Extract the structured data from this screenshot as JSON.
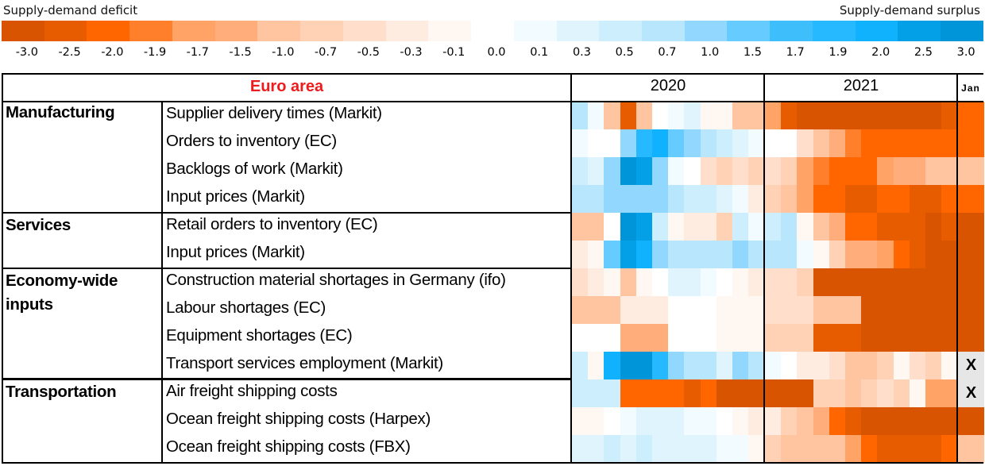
{
  "chart_data": {
    "type": "heatmap",
    "title": "Euro area",
    "legend": {
      "left_label": "Supply-demand deficit",
      "right_label": "Supply-demand surplus",
      "ticks": [
        "-3.0",
        "-2.5",
        "-2.0",
        "-1.9",
        "-1.7",
        "-1.5",
        "-1.0",
        "-0.7",
        "-0.5",
        "-0.3",
        "-0.1",
        "0.0",
        "0.1",
        "0.3",
        "0.5",
        "0.7",
        "1.0",
        "1.5",
        "1.7",
        "1.9",
        "2.0",
        "2.5",
        "3.0"
      ],
      "colors": [
        "#d95400",
        "#e85c00",
        "#ff6600",
        "#ff7f2a",
        "#ffa366",
        "#ffad7a",
        "#ffc4a0",
        "#ffd1b5",
        "#ffdfcc",
        "#ffece0",
        "#fff8f2",
        "#ffffff",
        "#f2fbff",
        "#e0f4fd",
        "#cdeefc",
        "#b8e6fc",
        "#92d7fd",
        "#66ccff",
        "#3ebffc",
        "#26b9ff",
        "#10b2fe",
        "#03a0e8",
        "#0094d8"
      ]
    },
    "column_groups": [
      {
        "label": "2020",
        "months": 12
      },
      {
        "label": "2021",
        "months": 12
      },
      {
        "label": "Jan",
        "months": 1
      }
    ],
    "missing_marker": "X",
    "categories": [
      {
        "name": "Manufacturing",
        "rows": [
          0,
          1,
          2,
          3
        ]
      },
      {
        "name": "Services",
        "rows": [
          4,
          5
        ]
      },
      {
        "name": "Economy-wide inputs",
        "rows": [
          6,
          7,
          8,
          9
        ]
      },
      {
        "name": "Transportation",
        "rows": [
          10,
          11,
          12
        ]
      }
    ],
    "rows": [
      {
        "label": "Supplier delivery times (Markit)",
        "values": [
          0.7,
          0.1,
          -1.0,
          -2.5,
          -1.0,
          0.0,
          0.1,
          0.3,
          -0.1,
          -0.1,
          -1.0,
          -1.0,
          -1.7,
          -2.5,
          -3.0,
          -3.0,
          -3.0,
          -3.0,
          -3.0,
          -3.0,
          -3.0,
          -3.0,
          -3.0,
          -2.5,
          -2.0
        ]
      },
      {
        "label": "Orders to inventory (EC)",
        "values": [
          0.1,
          0.0,
          0.0,
          1.0,
          1.9,
          2.0,
          1.5,
          1.0,
          0.7,
          0.5,
          0.3,
          0.1,
          0.0,
          0.0,
          -0.5,
          -1.0,
          -1.5,
          -1.9,
          -2.0,
          -2.0,
          -2.0,
          -2.0,
          -2.0,
          -2.0,
          -2.0
        ]
      },
      {
        "label": "Backlogs of work (Markit)",
        "values": [
          0.5,
          0.3,
          1.0,
          3.0,
          2.5,
          1.0,
          0.1,
          0.0,
          -0.5,
          -0.7,
          -0.5,
          -0.7,
          -0.5,
          -0.7,
          -1.7,
          -1.9,
          -2.0,
          -2.0,
          -2.0,
          -1.7,
          -1.5,
          -1.5,
          -1.0,
          -1.0,
          -1.0
        ]
      },
      {
        "label": "Input prices (Markit)",
        "values": [
          0.7,
          0.7,
          1.0,
          1.0,
          1.0,
          1.0,
          0.7,
          0.5,
          0.5,
          0.3,
          0.1,
          -0.3,
          -0.7,
          -1.0,
          -1.7,
          -2.0,
          -2.0,
          -2.5,
          -2.5,
          -2.0,
          -2.0,
          -2.5,
          -2.5,
          -2.0,
          -2.0
        ]
      },
      {
        "label": "Retail orders to inventory (EC)",
        "values": [
          -1.0,
          -1.0,
          0.0,
          3.0,
          2.5,
          0.5,
          -0.1,
          -0.3,
          -0.3,
          -0.7,
          0.5,
          0.1,
          0.5,
          0.7,
          -0.1,
          -1.0,
          -1.5,
          -2.0,
          -2.0,
          -2.5,
          -2.5,
          -2.5,
          -3.0,
          -2.5,
          -3.0
        ]
      },
      {
        "label": "Input prices (Markit)",
        "values": [
          -0.3,
          -0.1,
          1.5,
          2.5,
          2.0,
          1.0,
          0.7,
          0.7,
          0.7,
          0.7,
          1.0,
          0.7,
          0.7,
          0.7,
          0.1,
          -0.1,
          -0.7,
          -1.5,
          -1.5,
          -1.7,
          -2.0,
          -2.5,
          -3.0,
          -3.0,
          -3.0
        ]
      },
      {
        "label": "Construction material shortages in Germany (ifo)",
        "values": [
          -0.5,
          -0.3,
          -0.1,
          -1.0,
          -0.1,
          0.0,
          0.3,
          0.3,
          0.1,
          0.0,
          -0.1,
          -0.3,
          -0.5,
          -0.5,
          -0.7,
          -3.0,
          -3.0,
          -3.0,
          -3.0,
          -3.0,
          -3.0,
          -3.0,
          -3.0,
          -3.0,
          -3.0
        ]
      },
      {
        "label": "Labour shortages (EC)",
        "values": [
          -1.0,
          -1.0,
          -1.0,
          -0.3,
          -0.3,
          -0.3,
          0.0,
          0.0,
          0.0,
          -0.1,
          -0.1,
          -0.1,
          -0.5,
          -0.5,
          -0.5,
          -1.0,
          -1.0,
          -1.0,
          -3.0,
          -3.0,
          -3.0,
          -3.0,
          -3.0,
          -3.0,
          -3.0
        ]
      },
      {
        "label": "Equipment shortages (EC)",
        "values": [
          0.0,
          0.0,
          0.0,
          -1.5,
          -1.5,
          -1.5,
          0.0,
          0.0,
          0.0,
          -0.1,
          -0.1,
          -0.1,
          -0.7,
          -0.7,
          -0.7,
          -2.5,
          -2.5,
          -2.5,
          -3.0,
          -3.0,
          -3.0,
          -3.0,
          -3.0,
          -3.0,
          -3.0
        ]
      },
      {
        "label": "Transport services employment (Markit)",
        "values": [
          0.5,
          -0.1,
          2.0,
          3.0,
          3.0,
          1.9,
          1.0,
          0.7,
          0.7,
          0.3,
          1.0,
          0.7,
          0.1,
          0.0,
          -0.3,
          -0.3,
          -0.5,
          -1.0,
          -1.0,
          -0.7,
          -0.1,
          -0.5,
          -0.7,
          -0.1,
          null
        ]
      },
      {
        "label": "Air freight shipping costs",
        "values": [
          0.5,
          0.5,
          0.5,
          -2.0,
          -2.0,
          -2.0,
          -2.0,
          -2.5,
          -2.0,
          -3.0,
          -3.0,
          -3.0,
          -3.0,
          -3.0,
          -3.0,
          -0.7,
          -0.7,
          -1.0,
          -0.7,
          -0.5,
          -0.7,
          -0.1,
          -1.7,
          -1.7,
          null
        ]
      },
      {
        "label": "Ocean freight shipping costs (Harpex)",
        "values": [
          -0.1,
          -0.1,
          0.0,
          0.1,
          0.3,
          0.3,
          0.3,
          0.1,
          0.1,
          0.0,
          -0.1,
          -0.3,
          -0.3,
          -0.7,
          -1.0,
          -1.5,
          -2.0,
          -2.5,
          -3.0,
          -3.0,
          -3.0,
          -3.0,
          -3.0,
          -3.0,
          -3.0
        ]
      },
      {
        "label": "Ocean freight shipping costs (FBX)",
        "values": [
          0.3,
          0.3,
          0.5,
          0.3,
          0.5,
          0.3,
          0.3,
          0.3,
          0.3,
          0.1,
          0.1,
          -0.1,
          -0.7,
          -1.0,
          -1.0,
          -1.0,
          -1.0,
          -1.7,
          -2.0,
          -2.5,
          -2.5,
          -2.5,
          -2.5,
          -2.0,
          -1.0
        ]
      }
    ]
  },
  "labels": {
    "legend_left": "Supply-demand deficit",
    "legend_right": "Supply-demand surplus",
    "region": "Euro area",
    "year_2020": "2020",
    "year_2021": "2021",
    "jan": "Jan",
    "cat_manufacturing": "Manufacturing",
    "cat_services": "Services",
    "cat_economy_line1": "Economy-wide",
    "cat_economy_line2": "inputs",
    "cat_transportation": "Transportation"
  }
}
